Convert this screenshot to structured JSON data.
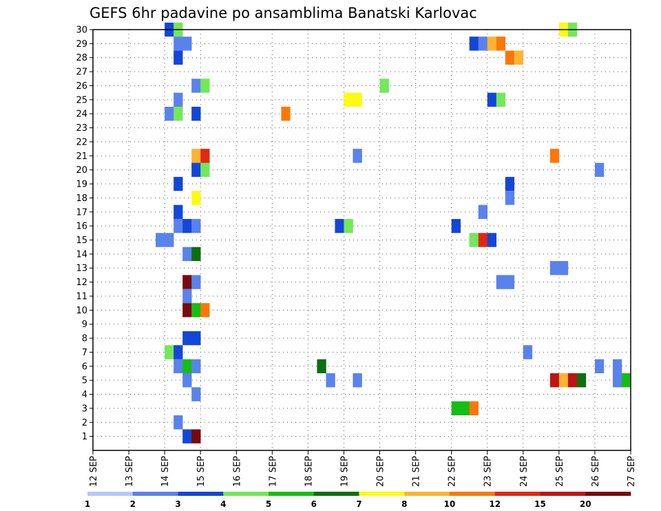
{
  "chart_data": {
    "type": "heatmap",
    "title": "GEFS 6hr padavine po ansamblima Banatski Karlovac",
    "y_categories": [
      "1",
      "2",
      "3",
      "4",
      "5",
      "6",
      "7",
      "8",
      "9",
      "10",
      "11",
      "12",
      "13",
      "14",
      "15",
      "16",
      "17",
      "18",
      "19",
      "20",
      "21",
      "22",
      "23",
      "24",
      "25",
      "26",
      "27",
      "28",
      "29",
      "30"
    ],
    "x_tick_labels": [
      "12 SEP",
      "13 SEP",
      "14 SEP",
      "15 SEP",
      "16 SEP",
      "17 SEP",
      "18 SEP",
      "19 SEP",
      "20 SEP",
      "21 SEP",
      "22 SEP",
      "23 SEP",
      "24 SEP",
      "25 SEP",
      "26 SEP",
      "27 SEP"
    ],
    "x_unit": "6h steps since 12 SEP 00Z",
    "x_range": [
      0,
      60
    ],
    "y_range": [
      0,
      30
    ],
    "grid": true,
    "colorbar": {
      "labels": [
        "1",
        "2",
        "3",
        "4",
        "5",
        "6",
        "7",
        "8",
        "10",
        "12",
        "15",
        "20"
      ],
      "colors": [
        "#b4c8f8",
        "#5a82ec",
        "#1446d8",
        "#72e85a",
        "#14be14",
        "#0f6e0f",
        "#fefa14",
        "#fcb432",
        "#fa780a",
        "#e12814",
        "#be1414",
        "#780a0a"
      ]
    },
    "cells": [
      {
        "m": 30,
        "x": 8,
        "v": 2
      },
      {
        "m": 30,
        "x": 9,
        "v": 3
      },
      {
        "m": 30,
        "x": 52,
        "v": 6
      },
      {
        "m": 30,
        "x": 53,
        "v": 3
      },
      {
        "m": 29,
        "x": 9,
        "v": 1
      },
      {
        "m": 29,
        "x": 10,
        "v": 1
      },
      {
        "m": 29,
        "x": 42,
        "v": 2
      },
      {
        "m": 29,
        "x": 43,
        "v": 1
      },
      {
        "m": 29,
        "x": 44,
        "v": 7
      },
      {
        "m": 29,
        "x": 45,
        "v": 8
      },
      {
        "m": 28,
        "x": 9,
        "v": 2
      },
      {
        "m": 28,
        "x": 46,
        "v": 8
      },
      {
        "m": 28,
        "x": 47,
        "v": 7
      },
      {
        "m": 26,
        "x": 11,
        "v": 1
      },
      {
        "m": 26,
        "x": 12,
        "v": 3
      },
      {
        "m": 26,
        "x": 32,
        "v": 3
      },
      {
        "m": 25,
        "x": 9,
        "v": 1
      },
      {
        "m": 25,
        "x": 28,
        "v": 6
      },
      {
        "m": 25,
        "x": 29,
        "v": 6
      },
      {
        "m": 25,
        "x": 44,
        "v": 2
      },
      {
        "m": 25,
        "x": 45,
        "v": 3
      },
      {
        "m": 24,
        "x": 8,
        "v": 1
      },
      {
        "m": 24,
        "x": 9,
        "v": 3
      },
      {
        "m": 24,
        "x": 11,
        "v": 2
      },
      {
        "m": 24,
        "x": 21,
        "v": 8
      },
      {
        "m": 21,
        "x": 11,
        "v": 7
      },
      {
        "m": 21,
        "x": 12,
        "v": 9
      },
      {
        "m": 21,
        "x": 29,
        "v": 1
      },
      {
        "m": 21,
        "x": 51,
        "v": 8
      },
      {
        "m": 20,
        "x": 11,
        "v": 2
      },
      {
        "m": 20,
        "x": 12,
        "v": 3
      },
      {
        "m": 20,
        "x": 56,
        "v": 1
      },
      {
        "m": 19,
        "x": 9,
        "v": 2
      },
      {
        "m": 19,
        "x": 46,
        "v": 2
      },
      {
        "m": 18,
        "x": 11,
        "v": 6
      },
      {
        "m": 18,
        "x": 46,
        "v": 1
      },
      {
        "m": 17,
        "x": 9,
        "v": 2
      },
      {
        "m": 17,
        "x": 43,
        "v": 1
      },
      {
        "m": 16,
        "x": 9,
        "v": 1
      },
      {
        "m": 16,
        "x": 10,
        "v": 2
      },
      {
        "m": 16,
        "x": 11,
        "v": 1
      },
      {
        "m": 16,
        "x": 27,
        "v": 2
      },
      {
        "m": 16,
        "x": 28,
        "v": 3
      },
      {
        "m": 16,
        "x": 40,
        "v": 2
      },
      {
        "m": 15,
        "x": 7,
        "v": 1
      },
      {
        "m": 15,
        "x": 8,
        "v": 1
      },
      {
        "m": 15,
        "x": 42,
        "v": 3
      },
      {
        "m": 15,
        "x": 43,
        "v": 9
      },
      {
        "m": 15,
        "x": 44,
        "v": 2
      },
      {
        "m": 14,
        "x": 10,
        "v": 1
      },
      {
        "m": 14,
        "x": 11,
        "v": 5
      },
      {
        "m": 13,
        "x": 51,
        "v": 1
      },
      {
        "m": 13,
        "x": 52,
        "v": 1
      },
      {
        "m": 12,
        "x": 10,
        "v": 11
      },
      {
        "m": 12,
        "x": 11,
        "v": 1
      },
      {
        "m": 12,
        "x": 45,
        "v": 1
      },
      {
        "m": 12,
        "x": 46,
        "v": 1
      },
      {
        "m": 11,
        "x": 10,
        "v": 1
      },
      {
        "m": 10,
        "x": 10,
        "v": 11
      },
      {
        "m": 10,
        "x": 11,
        "v": 4
      },
      {
        "m": 10,
        "x": 12,
        "v": 8
      },
      {
        "m": 8,
        "x": 10,
        "v": 2
      },
      {
        "m": 8,
        "x": 11,
        "v": 2
      },
      {
        "m": 7,
        "x": 8,
        "v": 3
      },
      {
        "m": 7,
        "x": 9,
        "v": 2
      },
      {
        "m": 7,
        "x": 48,
        "v": 1
      },
      {
        "m": 6,
        "x": 9,
        "v": 1
      },
      {
        "m": 6,
        "x": 10,
        "v": 4
      },
      {
        "m": 6,
        "x": 11,
        "v": 1
      },
      {
        "m": 6,
        "x": 25,
        "v": 5
      },
      {
        "m": 6,
        "x": 56,
        "v": 1
      },
      {
        "m": 6,
        "x": 58,
        "v": 1
      },
      {
        "m": 5,
        "x": 10,
        "v": 1
      },
      {
        "m": 5,
        "x": 26,
        "v": 1
      },
      {
        "m": 5,
        "x": 29,
        "v": 1
      },
      {
        "m": 5,
        "x": 51,
        "v": 10
      },
      {
        "m": 5,
        "x": 52,
        "v": 7
      },
      {
        "m": 5,
        "x": 53,
        "v": 10
      },
      {
        "m": 5,
        "x": 54,
        "v": 5
      },
      {
        "m": 5,
        "x": 58,
        "v": 1
      },
      {
        "m": 5,
        "x": 59,
        "v": 4
      },
      {
        "m": 4,
        "x": 11,
        "v": 1
      },
      {
        "m": 3,
        "x": 40,
        "v": 4
      },
      {
        "m": 3,
        "x": 41,
        "v": 4
      },
      {
        "m": 3,
        "x": 42,
        "v": 8
      },
      {
        "m": 2,
        "x": 9,
        "v": 1
      },
      {
        "m": 1,
        "x": 10,
        "v": 2
      },
      {
        "m": 1,
        "x": 11,
        "v": 11
      }
    ]
  }
}
